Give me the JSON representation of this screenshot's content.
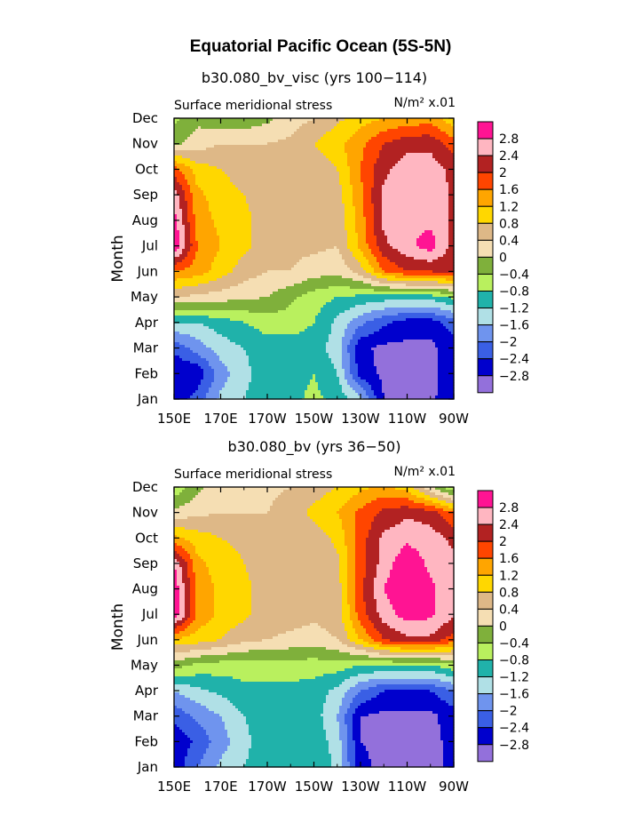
{
  "figure_title": "Equatorial Pacific Ocean (5S-5N)",
  "colors": {
    "-3.0": "#9370db",
    "-2.6": "#0000cd",
    "-2.2": "#3a5fe5",
    "-1.8": "#6f94ee",
    "-1.4": "#b0e0e6",
    "-1.0": "#20b2aa",
    "-0.6": "#b9f05e",
    "-0.2": "#7fb03b",
    "0.2": "#f5deb3",
    "0.6": "#deb887",
    "1.0": "#ffd700",
    "1.4": "#ffa500",
    "1.8": "#ff4500",
    "2.2": "#b22222",
    "2.6": "#ffb6c1",
    "3.0": "#ff1493"
  },
  "chart_data": [
    {
      "type": "heatmap",
      "title": "b30.080_bv_visc (yrs 100−114)",
      "left_label": "Surface meridional stress",
      "units_label": "N/m² x.01",
      "ylabel": "Month",
      "xlabel": "",
      "x_ticks": [
        "150E",
        "170E",
        "170W",
        "150W",
        "130W",
        "110W",
        "90W"
      ],
      "y_ticks": [
        "Jan",
        "Feb",
        "Mar",
        "Apr",
        "May",
        "Jun",
        "Jul",
        "Aug",
        "Sep",
        "Oct",
        "Nov",
        "Dec"
      ],
      "x": [
        150,
        160,
        170,
        180,
        190,
        200,
        210,
        220,
        230,
        240,
        250,
        260,
        270
      ],
      "levels": [
        -2.8,
        -2.4,
        -2.0,
        -1.6,
        -1.2,
        -0.8,
        -0.4,
        0,
        0.4,
        0.8,
        1.2,
        1.6,
        2.0,
        2.4,
        2.8
      ],
      "legend_labels": [
        "2.8",
        "2.4",
        "2",
        "1.6",
        "1.2",
        "0.8",
        "0.4",
        "0",
        "−0.4",
        "−0.8",
        "−1.2",
        "−1.6",
        "−2",
        "−2.4",
        "−2.8"
      ],
      "legend": "right",
      "z": [
        [
          -2.7,
          -2.2,
          -1.5,
          -1.2,
          -1.0,
          -0.9,
          -0.7,
          -0.9,
          -1.5,
          -2.8,
          -2.9,
          -2.9,
          -2.5
        ],
        [
          -2.8,
          -2.7,
          -1.8,
          -1.3,
          -1.0,
          -1.0,
          -0.8,
          -1.2,
          -2.6,
          -2.9,
          -2.9,
          -2.9,
          -2.6
        ],
        [
          -2.3,
          -1.8,
          -1.4,
          -1.2,
          -1.0,
          -1.0,
          -1.0,
          -1.4,
          -2.7,
          -2.9,
          -2.9,
          -2.9,
          -2.6
        ],
        [
          -1.2,
          -1.2,
          -1.0,
          -0.8,
          -0.6,
          -0.6,
          -0.8,
          -1.3,
          -1.9,
          -2.3,
          -2.6,
          -2.6,
          -2.2
        ],
        [
          0.4,
          0.3,
          0.2,
          0.1,
          0.0,
          -0.3,
          -0.6,
          -0.8,
          -0.9,
          -1.0,
          -1.0,
          -1.0,
          -0.7
        ],
        [
          1.6,
          1.4,
          1.0,
          0.6,
          0.4,
          0.4,
          0.2,
          0.1,
          0.6,
          1.6,
          2.0,
          2.0,
          2.2
        ],
        [
          3.2,
          1.6,
          1.2,
          0.9,
          0.6,
          0.5,
          0.5,
          0.4,
          1.3,
          2.3,
          2.7,
          3.0,
          2.2
        ],
        [
          3.0,
          1.4,
          1.1,
          0.9,
          0.6,
          0.5,
          0.5,
          0.5,
          1.4,
          2.5,
          2.7,
          2.7,
          2.3
        ],
        [
          2.6,
          1.3,
          1.0,
          0.8,
          0.6,
          0.5,
          0.5,
          0.6,
          1.5,
          2.5,
          2.7,
          2.7,
          2.3
        ],
        [
          1.8,
          1.0,
          0.8,
          0.6,
          0.5,
          0.5,
          0.5,
          0.8,
          1.6,
          2.3,
          2.6,
          2.6,
          2.3
        ],
        [
          -0.1,
          0.2,
          0.4,
          0.4,
          0.4,
          0.5,
          0.8,
          1.1,
          1.5,
          2.0,
          2.3,
          2.3,
          1.8
        ],
        [
          -0.5,
          -0.1,
          -0.3,
          -0.3,
          -0.1,
          0.2,
          0.4,
          0.7,
          1.0,
          1.2,
          1.3,
          1.4,
          0.9
        ]
      ]
    },
    {
      "type": "heatmap",
      "title": "b30.080_bv (yrs 36−50)",
      "left_label": "Surface meridional stress",
      "units_label": "N/m² x.01",
      "ylabel": "Month",
      "xlabel": "",
      "x_ticks": [
        "150E",
        "170E",
        "170W",
        "150W",
        "130W",
        "110W",
        "90W"
      ],
      "y_ticks": [
        "Jan",
        "Feb",
        "Mar",
        "Apr",
        "May",
        "Jun",
        "Jul",
        "Aug",
        "Sep",
        "Oct",
        "Nov",
        "Dec"
      ],
      "x": [
        150,
        160,
        170,
        180,
        190,
        200,
        210,
        220,
        230,
        240,
        250,
        260,
        270
      ],
      "levels": [
        -2.8,
        -2.4,
        -2.0,
        -1.6,
        -1.2,
        -0.8,
        -0.4,
        0,
        0.4,
        0.8,
        1.2,
        1.6,
        2.0,
        2.4,
        2.8
      ],
      "legend_labels": [
        "2.8",
        "2.4",
        "2",
        "1.6",
        "1.2",
        "0.8",
        "0.4",
        "0",
        "−0.4",
        "−0.8",
        "−1.2",
        "−1.6",
        "−2",
        "−2.4",
        "−2.8"
      ],
      "legend": "right",
      "z": [
        [
          -2.7,
          -2.0,
          -1.5,
          -1.2,
          -1.0,
          -0.9,
          -0.8,
          -1.3,
          -2.7,
          -2.9,
          -2.9,
          -2.9,
          -2.7
        ],
        [
          -2.7,
          -2.3,
          -1.8,
          -1.3,
          -1.0,
          -0.9,
          -0.9,
          -1.4,
          -2.8,
          -2.9,
          -2.9,
          -2.9,
          -2.7
        ],
        [
          -2.3,
          -1.9,
          -1.6,
          -1.2,
          -1.0,
          -0.9,
          -1.0,
          -1.6,
          -2.8,
          -2.9,
          -2.9,
          -2.9,
          -2.6
        ],
        [
          -1.6,
          -1.3,
          -1.1,
          -0.9,
          -0.9,
          -0.9,
          -1.0,
          -1.3,
          -2.0,
          -2.4,
          -2.4,
          -2.4,
          -2.0
        ],
        [
          -0.2,
          -0.5,
          -0.6,
          -0.6,
          -0.6,
          -0.6,
          -0.6,
          -0.6,
          -0.8,
          -0.8,
          -0.8,
          -0.8,
          -0.5
        ],
        [
          1.1,
          1.0,
          0.8,
          0.5,
          0.4,
          0.3,
          0.2,
          0.4,
          1.2,
          2.0,
          2.3,
          2.3,
          1.8
        ],
        [
          3.2,
          1.5,
          1.1,
          0.9,
          0.6,
          0.6,
          0.5,
          0.6,
          1.8,
          2.6,
          3.0,
          2.9,
          2.5
        ],
        [
          3.1,
          1.5,
          1.1,
          0.9,
          0.6,
          0.5,
          0.5,
          0.6,
          1.9,
          2.8,
          3.2,
          2.9,
          2.5
        ],
        [
          2.8,
          1.3,
          1.0,
          0.8,
          0.6,
          0.5,
          0.5,
          0.7,
          1.8,
          2.6,
          3.1,
          2.7,
          2.5
        ],
        [
          1.3,
          1.0,
          0.8,
          0.7,
          0.5,
          0.5,
          0.6,
          0.9,
          1.8,
          2.5,
          2.7,
          2.6,
          2.3
        ],
        [
          0.1,
          0.3,
          0.4,
          0.4,
          0.4,
          0.6,
          0.9,
          1.2,
          1.7,
          2.1,
          2.3,
          2.2,
          1.6
        ],
        [
          -0.7,
          -0.1,
          0.2,
          0.2,
          0.3,
          0.4,
          0.6,
          0.8,
          1.1,
          1.3,
          1.0,
          0.0,
          -0.8
        ]
      ]
    }
  ]
}
